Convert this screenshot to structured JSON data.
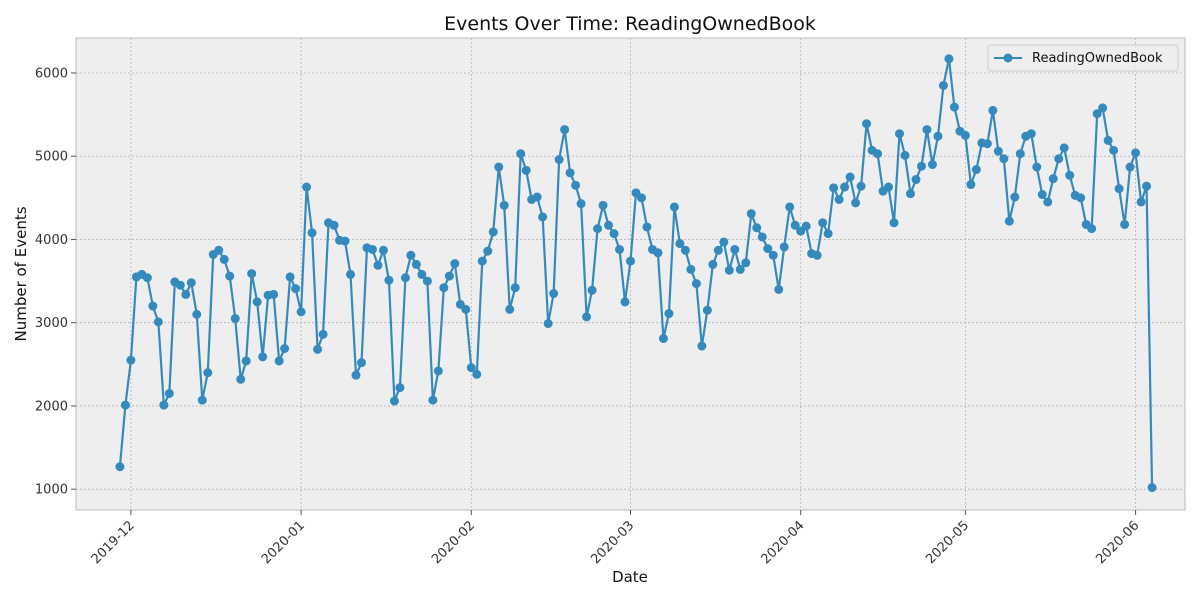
{
  "chart_data": {
    "type": "line",
    "title": "Events Over Time: ReadingOwnedBook",
    "xlabel": "Date",
    "ylabel": "Number of Events",
    "x_axis": {
      "type": "date",
      "range": [
        "2019-11-21",
        "2020-06-10"
      ],
      "ticks": [
        "2019-12-01",
        "2020-01-01",
        "2020-02-01",
        "2020-03-01",
        "2020-04-01",
        "2020-05-01",
        "2020-06-01"
      ],
      "tick_labels": [
        "2019-12",
        "2020-01",
        "2020-02",
        "2020-03",
        "2020-04",
        "2020-05",
        "2020-06"
      ]
    },
    "y_axis": {
      "range": [
        750,
        6420
      ],
      "ticks": [
        1000,
        2000,
        3000,
        4000,
        5000,
        6000
      ],
      "tick_labels": [
        "1000",
        "2000",
        "3000",
        "4000",
        "5000",
        "6000"
      ]
    },
    "grid": true,
    "legend_position": "top-right",
    "colors": {
      "series": "#348abd",
      "plot_background": "#eeeeee",
      "grid": "#b2b2b2"
    },
    "series": [
      {
        "name": "ReadingOwnedBook",
        "x": [
          "2019-11-29",
          "2019-11-30",
          "2019-12-01",
          "2019-12-02",
          "2019-12-03",
          "2019-12-04",
          "2019-12-05",
          "2019-12-06",
          "2019-12-07",
          "2019-12-08",
          "2019-12-09",
          "2019-12-10",
          "2019-12-11",
          "2019-12-12",
          "2019-12-13",
          "2019-12-14",
          "2019-12-15",
          "2019-12-16",
          "2019-12-17",
          "2019-12-18",
          "2019-12-19",
          "2019-12-20",
          "2019-12-21",
          "2019-12-22",
          "2019-12-23",
          "2019-12-24",
          "2019-12-25",
          "2019-12-26",
          "2019-12-27",
          "2019-12-28",
          "2019-12-29",
          "2019-12-30",
          "2019-12-31",
          "2020-01-01",
          "2020-01-02",
          "2020-01-03",
          "2020-01-04",
          "2020-01-05",
          "2020-01-06",
          "2020-01-07",
          "2020-01-08",
          "2020-01-09",
          "2020-01-10",
          "2020-01-11",
          "2020-01-12",
          "2020-01-13",
          "2020-01-14",
          "2020-01-15",
          "2020-01-16",
          "2020-01-17",
          "2020-01-18",
          "2020-01-19",
          "2020-01-20",
          "2020-01-21",
          "2020-01-22",
          "2020-01-23",
          "2020-01-24",
          "2020-01-25",
          "2020-01-26",
          "2020-01-27",
          "2020-01-28",
          "2020-01-29",
          "2020-01-30",
          "2020-01-31",
          "2020-02-01",
          "2020-02-02",
          "2020-02-03",
          "2020-02-04",
          "2020-02-05",
          "2020-02-06",
          "2020-02-07",
          "2020-02-08",
          "2020-02-09",
          "2020-02-10",
          "2020-02-11",
          "2020-02-12",
          "2020-02-13",
          "2020-02-14",
          "2020-02-15",
          "2020-02-16",
          "2020-02-17",
          "2020-02-18",
          "2020-02-19",
          "2020-02-20",
          "2020-02-21",
          "2020-02-22",
          "2020-02-23",
          "2020-02-24",
          "2020-02-25",
          "2020-02-26",
          "2020-02-27",
          "2020-02-28",
          "2020-02-29",
          "2020-03-01",
          "2020-03-02",
          "2020-03-03",
          "2020-03-04",
          "2020-03-05",
          "2020-03-06",
          "2020-03-07",
          "2020-03-08",
          "2020-03-09",
          "2020-03-10",
          "2020-03-11",
          "2020-03-12",
          "2020-03-13",
          "2020-03-14",
          "2020-03-15",
          "2020-03-16",
          "2020-03-17",
          "2020-03-18",
          "2020-03-19",
          "2020-03-20",
          "2020-03-21",
          "2020-03-22",
          "2020-03-23",
          "2020-03-24",
          "2020-03-25",
          "2020-03-26",
          "2020-03-27",
          "2020-03-28",
          "2020-03-29",
          "2020-03-30",
          "2020-03-31",
          "2020-04-01",
          "2020-04-02",
          "2020-04-03",
          "2020-04-04",
          "2020-04-05",
          "2020-04-06",
          "2020-04-07",
          "2020-04-08",
          "2020-04-09",
          "2020-04-10",
          "2020-04-11",
          "2020-04-12",
          "2020-04-13",
          "2020-04-14",
          "2020-04-15",
          "2020-04-16",
          "2020-04-17",
          "2020-04-18",
          "2020-04-19",
          "2020-04-20",
          "2020-04-21",
          "2020-04-22",
          "2020-04-23",
          "2020-04-24",
          "2020-04-25",
          "2020-04-26",
          "2020-04-27",
          "2020-04-28",
          "2020-04-29",
          "2020-04-30",
          "2020-05-01",
          "2020-05-02",
          "2020-05-03",
          "2020-05-04",
          "2020-05-05",
          "2020-05-06",
          "2020-05-07",
          "2020-05-08",
          "2020-05-09",
          "2020-05-10",
          "2020-05-11",
          "2020-05-12",
          "2020-05-13",
          "2020-05-14",
          "2020-05-15",
          "2020-05-16",
          "2020-05-17",
          "2020-05-18",
          "2020-05-19",
          "2020-05-20",
          "2020-05-21",
          "2020-05-22",
          "2020-05-23",
          "2020-05-24",
          "2020-05-25",
          "2020-05-26",
          "2020-05-27",
          "2020-05-28",
          "2020-05-29",
          "2020-05-30",
          "2020-05-31",
          "2020-06-01",
          "2020-06-02",
          "2020-06-03",
          "2020-06-04"
        ],
        "values": [
          1270,
          2010,
          2550,
          3550,
          3580,
          3540,
          3200,
          3010,
          2010,
          2150,
          3490,
          3450,
          3340,
          3480,
          3100,
          2070,
          2400,
          3820,
          3870,
          3760,
          3560,
          3050,
          2320,
          2540,
          3590,
          3250,
          2590,
          3330,
          3340,
          2540,
          2690,
          3550,
          3410,
          3130,
          4630,
          4080,
          2680,
          2860,
          4200,
          4170,
          3990,
          3980,
          3580,
          2370,
          2520,
          3900,
          3880,
          3690,
          3870,
          3510,
          2060,
          2220,
          3540,
          3810,
          3700,
          3580,
          3500,
          2070,
          2420,
          3420,
          3560,
          3710,
          3220,
          3160,
          2460,
          2380,
          3740,
          3860,
          4090,
          4870,
          4410,
          3160,
          3420,
          5030,
          4830,
          4480,
          4510,
          4270,
          2990,
          3350,
          4960,
          5320,
          4800,
          4650,
          4430,
          3070,
          3390,
          4130,
          4410,
          4170,
          4070,
          3880,
          3250,
          3740,
          4560,
          4500,
          4150,
          3880,
          3840,
          2810,
          3110,
          4390,
          3950,
          3870,
          3640,
          3470,
          2720,
          3150,
          3700,
          3870,
          3970,
          3630,
          3880,
          3640,
          3720,
          4310,
          4140,
          4030,
          3890,
          3810,
          3400,
          3910,
          4390,
          4170,
          4100,
          4160,
          3830,
          3810,
          4200,
          4070,
          4620,
          4480,
          4630,
          4750,
          4440,
          4640,
          5390,
          5070,
          5030,
          4580,
          4630,
          4200,
          5270,
          5010,
          4550,
          4720,
          4880,
          5320,
          4900,
          5240,
          5850,
          6170,
          5590,
          5300,
          5250,
          4660,
          4840,
          5160,
          5150,
          5550,
          5060,
          4970,
          4220,
          4510,
          5030,
          5240,
          5270,
          4870,
          4540,
          4450,
          4730,
          4970,
          5100,
          4770,
          4530,
          4500,
          4180,
          4130,
          5510,
          5580,
          5190,
          5070,
          4610,
          4180,
          4870,
          5040,
          4450,
          4640,
          1020
        ]
      }
    ]
  }
}
